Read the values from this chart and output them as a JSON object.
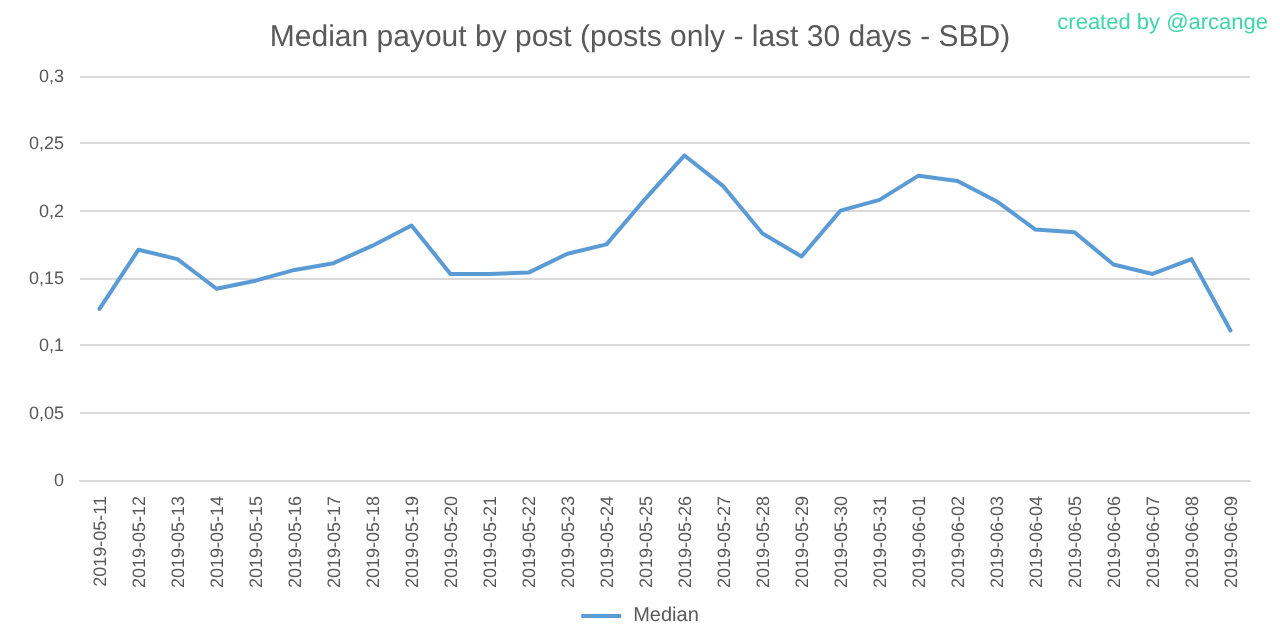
{
  "chart_data": {
    "type": "line",
    "title": "Median payout by post (posts only - last 30 days - SBD)",
    "annotations": [
      "created by @arcange"
    ],
    "categories": [
      "2019-05-11",
      "2019-05-12",
      "2019-05-13",
      "2019-05-14",
      "2019-05-15",
      "2019-05-16",
      "2019-05-17",
      "2019-05-18",
      "2019-05-19",
      "2019-05-20",
      "2019-05-21",
      "2019-05-22",
      "2019-05-23",
      "2019-05-24",
      "2019-05-25",
      "2019-05-26",
      "2019-05-27",
      "2019-05-28",
      "2019-05-29",
      "2019-05-30",
      "2019-05-31",
      "2019-06-01",
      "2019-06-02",
      "2019-06-03",
      "2019-06-04",
      "2019-06-05",
      "2019-06-06",
      "2019-06-07",
      "2019-06-08",
      "2019-06-09"
    ],
    "series": [
      {
        "name": "Median",
        "color": "#5b9bd5",
        "values": [
          0.127,
          0.171,
          0.164,
          0.142,
          0.148,
          0.156,
          0.161,
          0.174,
          0.189,
          0.153,
          0.153,
          0.154,
          0.168,
          0.175,
          0.209,
          0.241,
          0.218,
          0.183,
          0.166,
          0.2,
          0.208,
          0.226,
          0.222,
          0.207,
          0.186,
          0.184,
          0.16,
          0.153,
          0.164,
          0.111
        ]
      }
    ],
    "ylim": [
      0,
      0.3
    ],
    "yticks": [
      0,
      {
        "value": 0.05,
        "label": "0,05"
      },
      {
        "value": 0.1,
        "label": "0,1"
      },
      {
        "value": 0.15,
        "label": "0,15"
      },
      {
        "value": 0.2,
        "label": "0,2"
      },
      {
        "value": 0.25,
        "label": "0,25"
      },
      {
        "value": 0.3,
        "label": "0,3"
      }
    ],
    "grid": "y",
    "legend": "bottom",
    "marker": "none",
    "line_style": "solid"
  }
}
